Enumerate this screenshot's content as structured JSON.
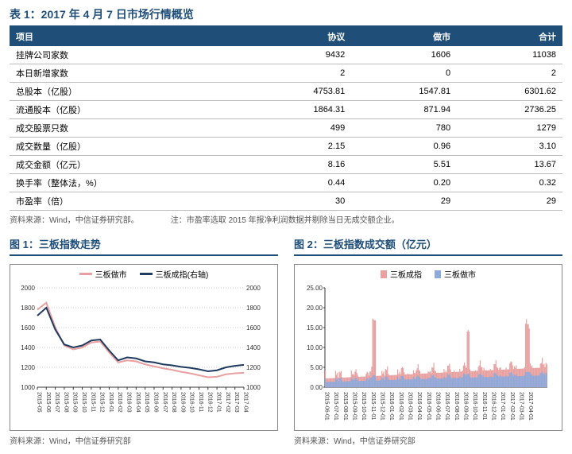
{
  "table": {
    "title": "表 1：2017 年 4 月 7 日市场行情概览",
    "headers": [
      "项目",
      "协议",
      "做市",
      "合计"
    ],
    "rows": [
      [
        "挂牌公司家数",
        "9432",
        "1606",
        "11038"
      ],
      [
        "本日新增家数",
        "2",
        "0",
        "2"
      ],
      [
        "总股本（亿股）",
        "4753.81",
        "1547.81",
        "6301.62"
      ],
      [
        "流通股本（亿股）",
        "1864.31",
        "871.94",
        "2736.25"
      ],
      [
        "成交股票只数",
        "499",
        "780",
        "1279"
      ],
      [
        "成交数量（亿股）",
        "2.15",
        "0.96",
        "3.10"
      ],
      [
        "成交金额（亿元）",
        "8.16",
        "5.51",
        "13.67"
      ],
      [
        "换手率（整体法，%）",
        "0.44",
        "0.20",
        "0.32"
      ],
      [
        "市盈率（倍）",
        "30",
        "29",
        "29"
      ]
    ],
    "source": "资料来源：Wind，中信证券研究部。",
    "note": "注：市盈率选取 2015 年报净利润数据并剔除当日无成交额企业。"
  },
  "chart1": {
    "title": "图 1：三板指数走势",
    "type": "line",
    "legend": [
      {
        "label": "三板做市",
        "color": "#e8a0a0"
      },
      {
        "label": "三板成指(右轴)",
        "color": "#1f3a5f"
      }
    ],
    "y_left": {
      "min": 1000,
      "max": 2000,
      "ticks": [
        1000,
        1200,
        1400,
        1600,
        1800,
        2000
      ]
    },
    "y_right": {
      "min": 1000,
      "max": 2000,
      "ticks": [
        1000,
        1200,
        1400,
        1600,
        1800,
        2000
      ]
    },
    "x_labels": [
      "2015-05",
      "2015-06",
      "2015-07",
      "2015-08",
      "2015-09",
      "2015-10",
      "2015-11",
      "2015-12",
      "2016-01",
      "2016-02",
      "2016-03",
      "2016-04",
      "2016-05",
      "2016-06",
      "2016-07",
      "2016-08",
      "2016-09",
      "2016-10",
      "2016-11",
      "2016-12",
      "2017-01",
      "2017-02",
      "2017-03",
      "2017-04"
    ],
    "series_zuoshi": [
      1780,
      1850,
      1600,
      1420,
      1380,
      1400,
      1450,
      1460,
      1350,
      1250,
      1270,
      1260,
      1230,
      1210,
      1190,
      1175,
      1155,
      1140,
      1120,
      1100,
      1105,
      1130,
      1140,
      1145
    ],
    "series_chengzhi": [
      1720,
      1800,
      1580,
      1430,
      1400,
      1420,
      1470,
      1480,
      1370,
      1270,
      1300,
      1290,
      1260,
      1250,
      1230,
      1220,
      1205,
      1195,
      1180,
      1160,
      1170,
      1200,
      1215,
      1225
    ],
    "colors": {
      "zuoshi": "#e8a0a0",
      "chengzhi": "#1f3a5f",
      "grid": "#cccccc",
      "axis": "#333"
    },
    "source": "资料来源：Wind，中信证券研究部"
  },
  "chart2": {
    "title": "图 2：三板指数成交额（亿元）",
    "type": "bar",
    "legend": [
      {
        "label": "三板成指",
        "color": "#e8a0a0"
      },
      {
        "label": "三板做市",
        "color": "#8ea9db"
      }
    ],
    "y": {
      "min": 0,
      "max": 25,
      "ticks": [
        0,
        5,
        10,
        15,
        20,
        25
      ],
      "labels": [
        "0.00",
        "5.00",
        "10.00",
        "15.00",
        "20.00",
        "25.00"
      ]
    },
    "x_labels": [
      "2015-06-01",
      "2015-07-01",
      "2015-08-01",
      "2015-09-01",
      "2015-10-01",
      "2015-11-01",
      "2015-12-01",
      "2016-01-01",
      "2016-02-01",
      "2016-03-01",
      "2016-04-01",
      "2016-05-01",
      "2016-06-01",
      "2016-07-01",
      "2016-08-01",
      "2016-09-01",
      "2016-10-01",
      "2016-11-01",
      "2016-12-01",
      "2017-01-01",
      "2017-02-01",
      "2017-03-01",
      "2017-04-01"
    ],
    "n_bars": 240,
    "colors": {
      "chengzhi": "#e8a0a0",
      "zuoshi": "#8ea9db",
      "axis": "#333"
    },
    "source": "资料来源：Wind，中信证券研究部"
  }
}
